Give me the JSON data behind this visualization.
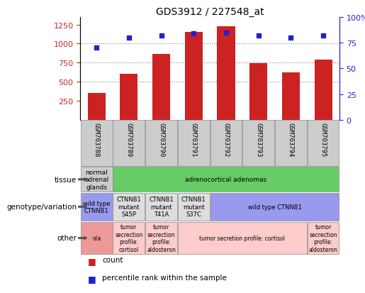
{
  "title": "GDS3912 / 227548_at",
  "samples": [
    "GSM703788",
    "GSM703789",
    "GSM703790",
    "GSM703791",
    "GSM703792",
    "GSM703793",
    "GSM703794",
    "GSM703795"
  ],
  "counts": [
    350,
    600,
    860,
    1150,
    1230,
    740,
    620,
    790
  ],
  "percentiles": [
    70,
    80,
    82,
    84,
    85,
    82,
    80,
    82
  ],
  "ylim_left": [
    0,
    1350
  ],
  "ylim_right": [
    0,
    100
  ],
  "yticks_left": [
    250,
    500,
    750,
    1000,
    1250
  ],
  "yticks_right": [
    0,
    25,
    50,
    75,
    100
  ],
  "bar_color": "#cc2222",
  "dot_color": "#2222cc",
  "title_fontsize": 10,
  "tissue_row": {
    "label": "tissue",
    "cells": [
      {
        "text": "normal\nadrenal\nglands",
        "color": "#cccccc",
        "span": 1
      },
      {
        "text": "adrenocortical adenomas",
        "color": "#66cc66",
        "span": 7
      }
    ]
  },
  "genotype_row": {
    "label": "genotype/variation",
    "cells": [
      {
        "text": "wild type\nCTNNB1",
        "color": "#9999ee",
        "span": 1
      },
      {
        "text": "CTNNB1\nmutant\nS45P",
        "color": "#dddddd",
        "span": 1
      },
      {
        "text": "CTNNB1\nmutant\nT41A",
        "color": "#dddddd",
        "span": 1
      },
      {
        "text": "CTNNB1\nmutant\nS37C",
        "color": "#dddddd",
        "span": 1
      },
      {
        "text": "wild type CTNNB1",
        "color": "#9999ee",
        "span": 4
      }
    ]
  },
  "other_row": {
    "label": "other",
    "cells": [
      {
        "text": "n/a",
        "color": "#ee9999",
        "span": 1
      },
      {
        "text": "tumor\nsecrection\nprofile:\ncortisol",
        "color": "#ffcccc",
        "span": 1
      },
      {
        "text": "tumor\nsecrection\nprofile:\naldosteron",
        "color": "#ffcccc",
        "span": 1
      },
      {
        "text": "tumor secretion profile: cortisol",
        "color": "#ffcccc",
        "span": 4
      },
      {
        "text": "tumor\nsecrection\nprofile:\naldosteron",
        "color": "#ffcccc",
        "span": 1
      }
    ]
  },
  "legend_items": [
    {
      "color": "#cc2222",
      "label": "count"
    },
    {
      "color": "#2222cc",
      "label": "percentile rank within the sample"
    }
  ],
  "hline_color": "#888888",
  "hline_style": "dotted",
  "hline_lw": 0.8,
  "hlines": [
    500,
    750,
    1000
  ],
  "bar_width": 0.55,
  "dot_size": 5,
  "sample_box_color": "#cccccc",
  "sample_box_edge": "#888888"
}
